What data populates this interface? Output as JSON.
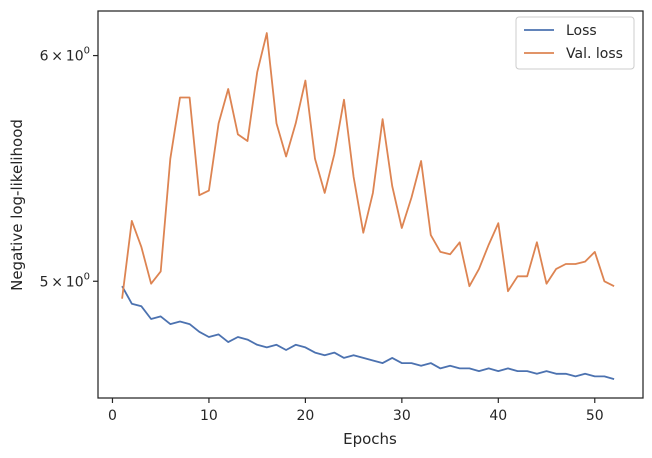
{
  "chart_data": {
    "type": "line",
    "xlabel": "Epochs",
    "ylabel": "Negative log-likelihood",
    "yscale": "log",
    "xlim": [
      -1.5,
      55
    ],
    "ylim": [
      4.55,
      6.22
    ],
    "x_ticks": [
      0,
      10,
      20,
      30,
      40,
      50
    ],
    "y_ticks": [
      {
        "value": 5,
        "label_base": "5",
        "label_exp": "0"
      },
      {
        "value": 6,
        "label_base": "6",
        "label_exp": "0"
      }
    ],
    "tick_times": "×",
    "tick_base": "10",
    "grid": false,
    "legend_position": "top-right",
    "x": [
      1,
      2,
      3,
      4,
      5,
      6,
      7,
      8,
      9,
      10,
      11,
      12,
      13,
      14,
      15,
      16,
      17,
      18,
      19,
      20,
      21,
      22,
      23,
      24,
      25,
      26,
      27,
      28,
      29,
      30,
      31,
      32,
      33,
      34,
      35,
      36,
      37,
      38,
      39,
      40,
      41,
      42,
      43,
      44,
      45,
      46,
      47,
      48,
      49,
      50,
      51,
      52
    ],
    "series": [
      {
        "name": "Loss",
        "color": "#4c72b0",
        "values": [
          4.98,
          4.91,
          4.9,
          4.85,
          4.86,
          4.83,
          4.84,
          4.83,
          4.8,
          4.78,
          4.79,
          4.76,
          4.78,
          4.77,
          4.75,
          4.74,
          4.75,
          4.73,
          4.75,
          4.74,
          4.72,
          4.71,
          4.72,
          4.7,
          4.71,
          4.7,
          4.69,
          4.68,
          4.7,
          4.68,
          4.68,
          4.67,
          4.68,
          4.66,
          4.67,
          4.66,
          4.66,
          4.65,
          4.66,
          4.65,
          4.66,
          4.65,
          4.65,
          4.64,
          4.65,
          4.64,
          4.64,
          4.63,
          4.64,
          4.63,
          4.63,
          4.62
        ]
      },
      {
        "name": "Val. loss",
        "color": "#dd8452",
        "values": [
          4.93,
          5.25,
          5.14,
          4.99,
          5.04,
          5.52,
          5.8,
          5.8,
          5.36,
          5.38,
          5.68,
          5.84,
          5.63,
          5.6,
          5.92,
          6.11,
          5.68,
          5.53,
          5.68,
          5.88,
          5.52,
          5.37,
          5.54,
          5.79,
          5.44,
          5.2,
          5.37,
          5.7,
          5.4,
          5.22,
          5.35,
          5.51,
          5.19,
          5.12,
          5.11,
          5.16,
          4.98,
          5.05,
          5.15,
          5.24,
          4.96,
          5.02,
          5.02,
          5.16,
          4.99,
          5.05,
          5.07,
          5.07,
          5.08,
          5.12,
          5.0,
          4.98
        ]
      }
    ]
  }
}
